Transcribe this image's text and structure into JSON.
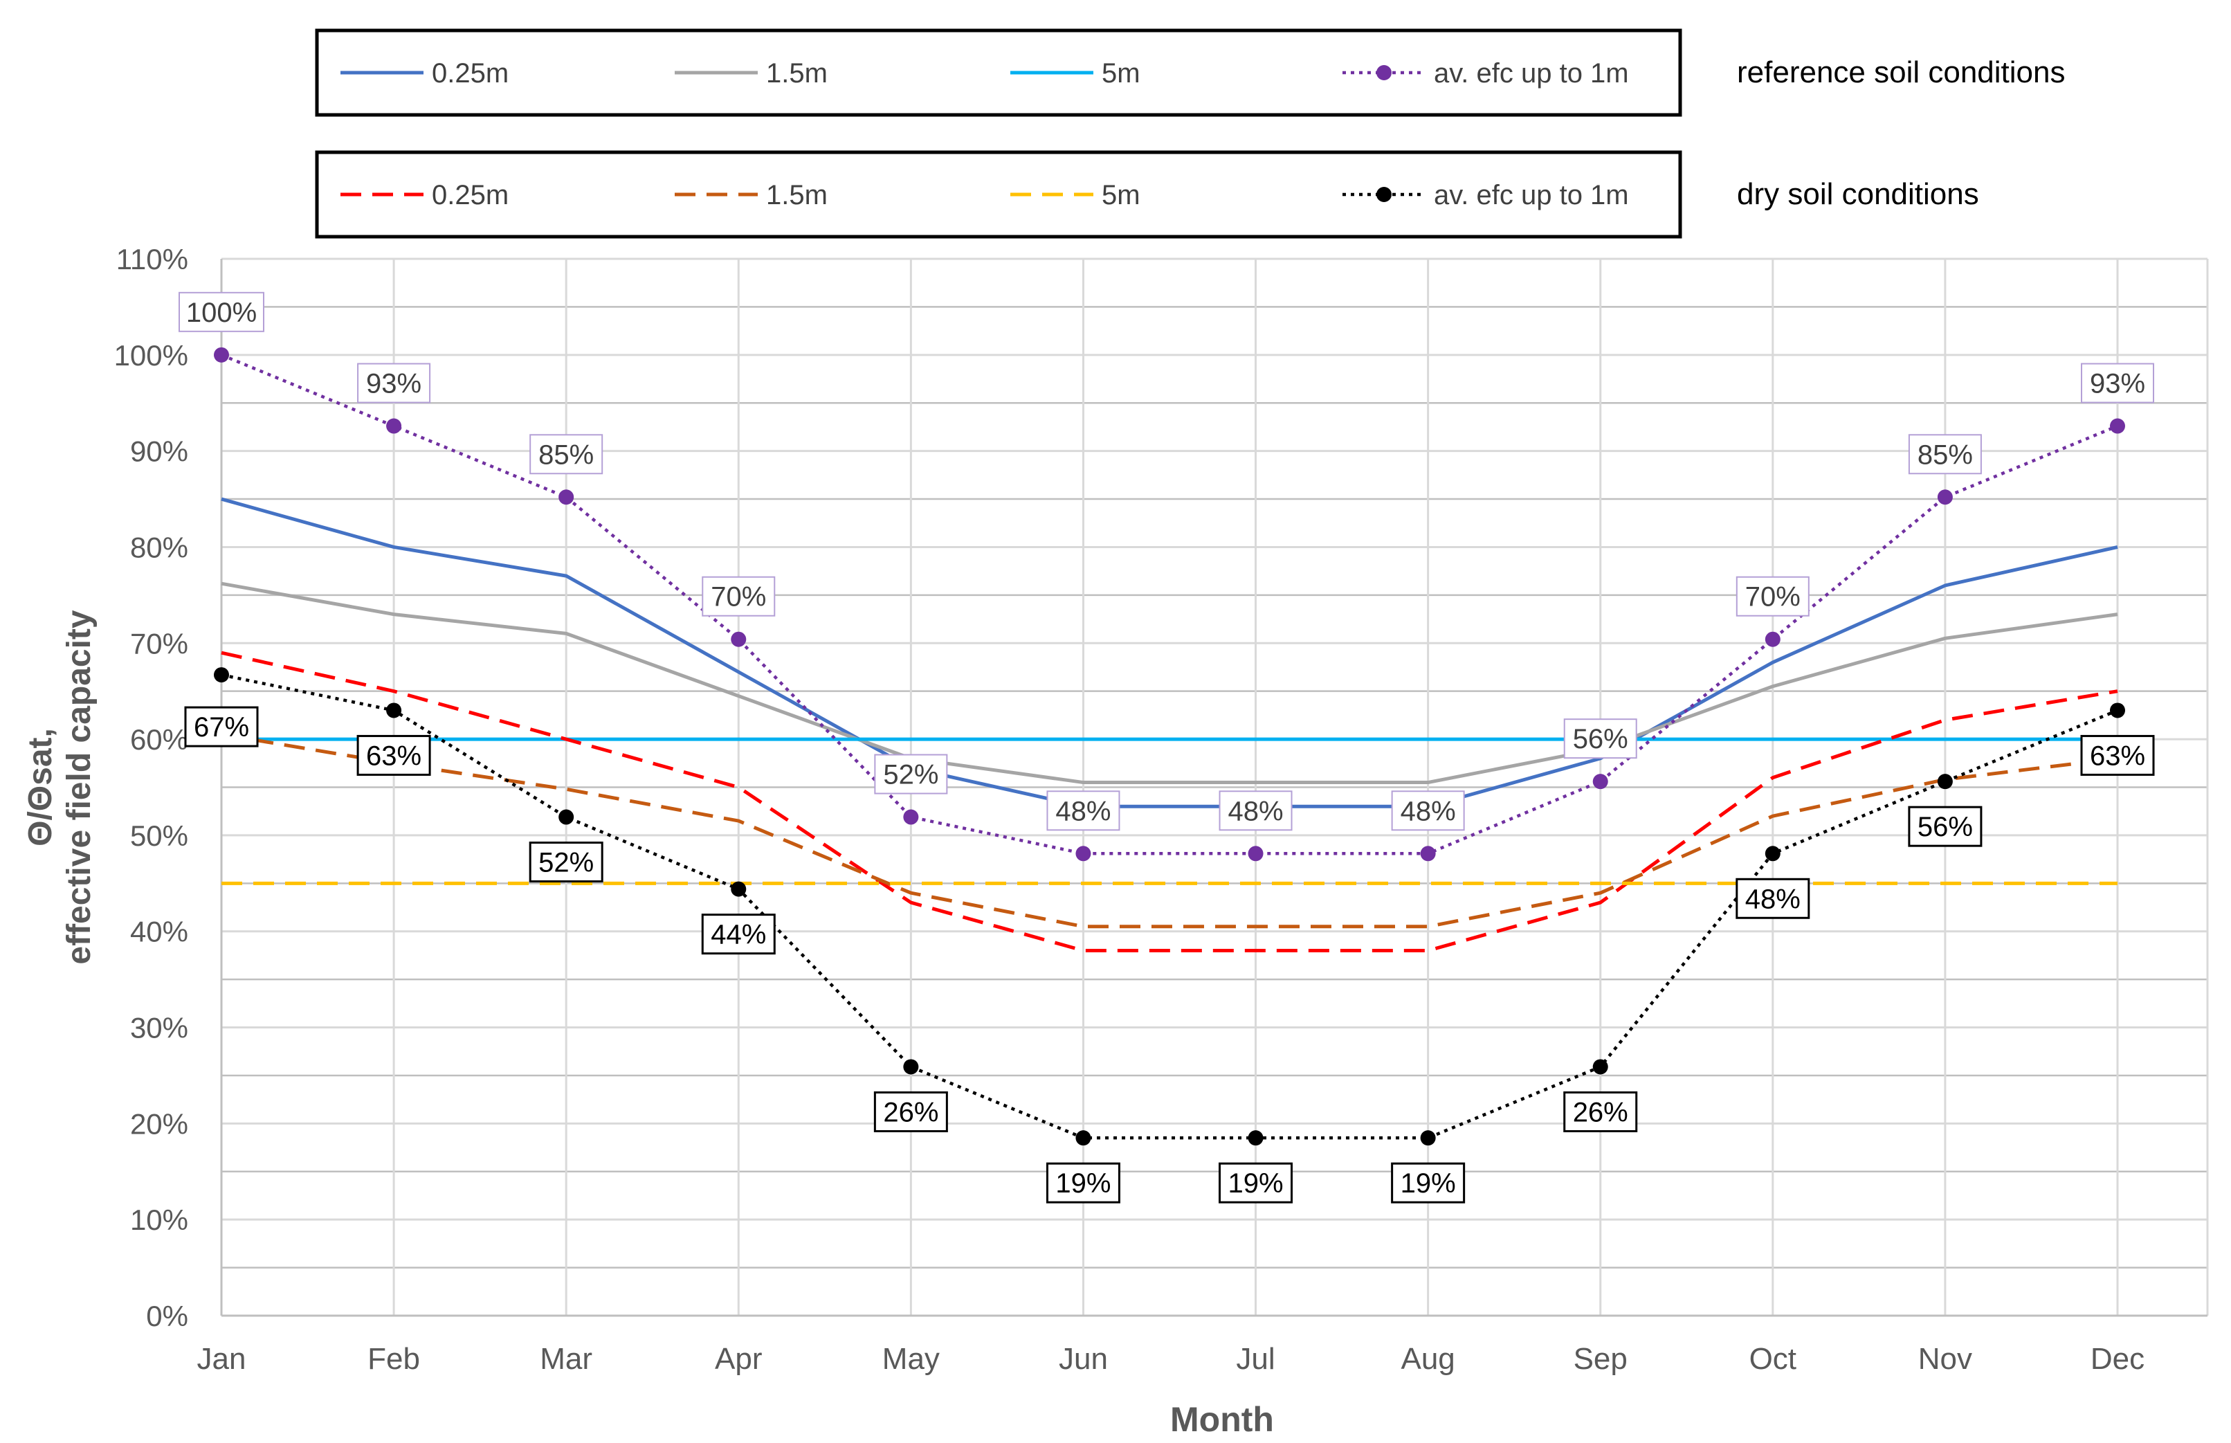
{
  "chart_data": {
    "type": "line",
    "title": "",
    "xlabel": "Month",
    "ylabel_line1": "Θ/Θsat,",
    "ylabel_line2": "effective field capacity",
    "categories": [
      "Jan",
      "Feb",
      "Mar",
      "Apr",
      "May",
      "Jun",
      "Jul",
      "Aug",
      "Sep",
      "Oct",
      "Nov",
      "Dec"
    ],
    "ylim": [
      0,
      110
    ],
    "yticks": [
      {
        "value": 0,
        "label": "0%"
      },
      {
        "value": 10,
        "label": "10%"
      },
      {
        "value": 20,
        "label": "20%"
      },
      {
        "value": 30,
        "label": "30%"
      },
      {
        "value": 40,
        "label": "40%"
      },
      {
        "value": 50,
        "label": "50%"
      },
      {
        "value": 60,
        "label": "60%"
      },
      {
        "value": 70,
        "label": "70%"
      },
      {
        "value": 80,
        "label": "80%"
      },
      {
        "value": 90,
        "label": "90%"
      },
      {
        "value": 100,
        "label": "100%"
      },
      {
        "value": 110,
        "label": "110%"
      }
    ],
    "grid": true,
    "legend_groups": [
      {
        "title": "reference soil conditions",
        "series": [
          "ref-0.25m",
          "ref-1.5m",
          "ref-5m",
          "ref-efc"
        ]
      },
      {
        "title": "dry soil conditions",
        "series": [
          "dry-0.25m",
          "dry-1.5m",
          "dry-5m",
          "dry-efc"
        ]
      }
    ],
    "series": [
      {
        "id": "ref-0.25m",
        "name": "0.25m",
        "color": "#4472C4",
        "style": "solid",
        "markers": false,
        "values": [
          85,
          80,
          77,
          67,
          57,
          53,
          53,
          53,
          58,
          68,
          76,
          80
        ]
      },
      {
        "id": "ref-1.5m",
        "name": "1.5m",
        "color": "#A5A5A5",
        "style": "solid",
        "markers": false,
        "values": [
          76.2,
          73,
          71,
          64.5,
          58,
          55.5,
          55.5,
          55.5,
          59,
          65.5,
          70.5,
          73
        ]
      },
      {
        "id": "ref-5m",
        "name": "5m",
        "color": "#00B0F0",
        "style": "solid",
        "markers": false,
        "values": [
          60,
          60,
          60,
          60,
          60,
          60,
          60,
          60,
          60,
          60,
          60,
          60
        ]
      },
      {
        "id": "ref-efc",
        "name": "av. efc up to 1m",
        "color": "#7030A0",
        "style": "dotted",
        "markers": true,
        "values": [
          100,
          92.6,
          85.2,
          70.4,
          51.9,
          48.1,
          48.1,
          48.1,
          55.6,
          70.4,
          85.2,
          92.6
        ],
        "labels": [
          "100%",
          "93%",
          "85%",
          "70%",
          "52%",
          "48%",
          "48%",
          "48%",
          "56%",
          "70%",
          "85%",
          "93%"
        ]
      },
      {
        "id": "dry-0.25m",
        "name": "0.25m",
        "color": "#FF0000",
        "style": "dashed",
        "markers": false,
        "values": [
          69,
          65,
          60,
          55,
          43,
          38,
          38,
          38,
          43,
          56,
          62,
          65
        ]
      },
      {
        "id": "dry-1.5m",
        "name": "1.5m",
        "color": "#C55A11",
        "style": "dashed",
        "markers": false,
        "values": [
          60.5,
          57.5,
          54.8,
          51.5,
          44,
          40.5,
          40.5,
          40.5,
          44,
          52,
          55.8,
          58
        ]
      },
      {
        "id": "dry-5m",
        "name": "5m",
        "color": "#FFC000",
        "style": "dashed",
        "markers": false,
        "values": [
          45,
          45,
          45,
          45,
          45,
          45,
          45,
          45,
          45,
          45,
          45,
          45
        ]
      },
      {
        "id": "dry-efc",
        "name": "av. efc up to 1m",
        "color": "#000000",
        "style": "dotted",
        "markers": true,
        "values": [
          66.7,
          63,
          51.9,
          44.4,
          25.9,
          18.5,
          18.5,
          18.5,
          25.9,
          48.1,
          55.6,
          63
        ],
        "labels": [
          "67%",
          "63%",
          "52%",
          "44%",
          "26%",
          "19%",
          "19%",
          "19%",
          "26%",
          "48%",
          "56%",
          "63%"
        ]
      }
    ]
  }
}
